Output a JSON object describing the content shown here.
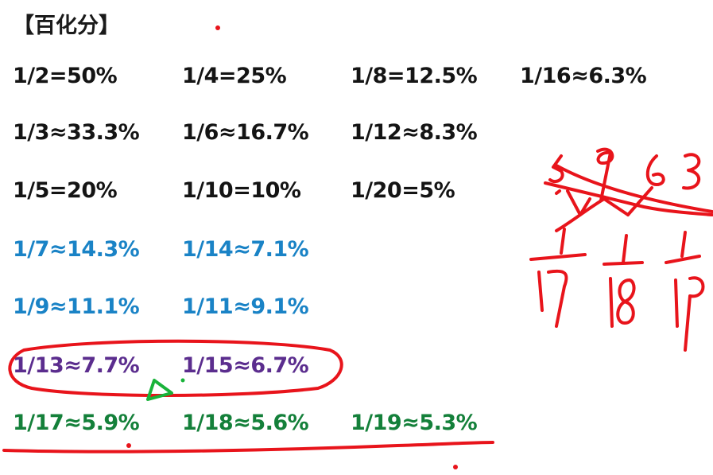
{
  "title": "【百化分】",
  "rows": [
    {
      "cells": [
        "1/2=50%",
        "1/4=25%",
        "1/8=12.5%",
        "1/16≈6.3%"
      ]
    },
    {
      "cells": [
        "1/3≈33.3%",
        "1/6≈16.7%",
        "1/12≈8.3%"
      ]
    },
    {
      "cells": [
        "1/5=20%",
        "1/10=10%",
        "1/20=5%"
      ]
    },
    {
      "cells": [
        "1/7≈14.3%",
        "1/14≈7.1%"
      ]
    },
    {
      "cells": [
        "1/9≈11.1%",
        "1/11≈9.1%"
      ]
    },
    {
      "cells": [
        "1/13≈7.7%",
        "1/15≈6.7%"
      ]
    },
    {
      "cells": [
        "1/17≈5.9%",
        "1/18≈5.6%",
        "1/19≈5.3%"
      ]
    }
  ],
  "colors": {
    "black": "#141414",
    "blue": "#1a83c6",
    "purple": "#5b2d8e",
    "green": "#14803a",
    "annotation_red": "#e8141b",
    "annotation_green": "#19b33a"
  }
}
